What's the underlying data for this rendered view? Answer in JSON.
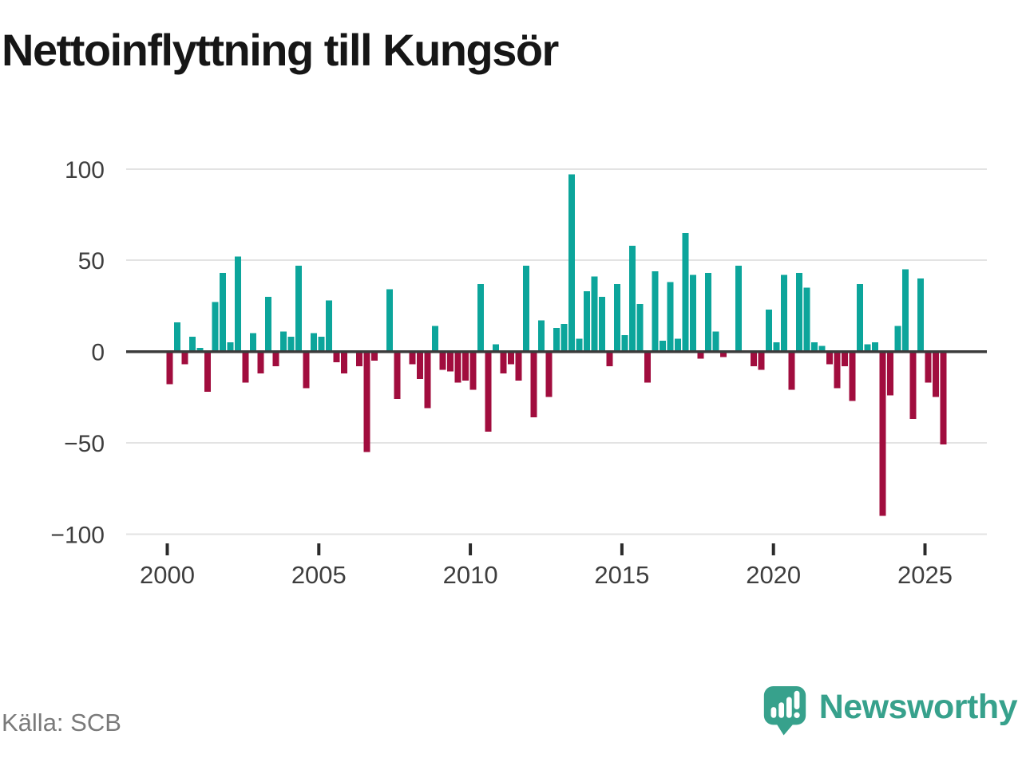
{
  "title": "Nettoinflyttning till Kungsör",
  "source": {
    "label": "Källa: SCB"
  },
  "logo": {
    "text": "Newsworthy",
    "icon": "bar-chart-exclamation-pin",
    "color": "#37a18c"
  },
  "chart_data": {
    "type": "bar",
    "title": "Nettoinflyttning till Kungsör",
    "frequency": "quarterly",
    "x_start": "2000-Q1",
    "x_end": "2025-Q3",
    "values": [
      -18,
      16,
      -7,
      8,
      2,
      -22,
      27,
      43,
      5,
      52,
      -17,
      10,
      -12,
      30,
      -8,
      11,
      8,
      47,
      -20,
      10,
      8,
      28,
      -6,
      -12,
      0,
      -8,
      -55,
      -5,
      0,
      34,
      -26,
      0,
      -7,
      -15,
      -31,
      14,
      -10,
      -11,
      -17,
      -16,
      -21,
      37,
      -44,
      4,
      -12,
      -7,
      -16,
      47,
      -36,
      17,
      -25,
      13,
      15,
      97,
      7,
      33,
      41,
      30,
      -8,
      37,
      9,
      58,
      26,
      -17,
      44,
      6,
      38,
      7,
      65,
      42,
      -4,
      43,
      11,
      -3,
      0,
      47,
      0,
      -8,
      -10,
      23,
      5,
      42,
      -21,
      43,
      35,
      5,
      3,
      -7,
      -20,
      -8,
      -27,
      37,
      4,
      5,
      -90,
      -24,
      14,
      45,
      -37,
      40,
      -17,
      -25,
      -51
    ],
    "x_tick_labels": [
      "2000",
      "2005",
      "2010",
      "2015",
      "2020",
      "2025"
    ],
    "y_ticks": [
      100,
      50,
      0,
      -50,
      -100
    ],
    "y_tick_labels": [
      "100",
      "50",
      "0",
      "−50",
      "−100"
    ],
    "ylim": [
      -100,
      100
    ],
    "grid": "horizontal",
    "legend": "none",
    "colors": {
      "positive": "#0ca59b",
      "negative": "#a10d3e",
      "zero_line": "#3b3b3b",
      "gridline": "#e3e3e3",
      "axis_text": "#3e3e3e"
    }
  }
}
